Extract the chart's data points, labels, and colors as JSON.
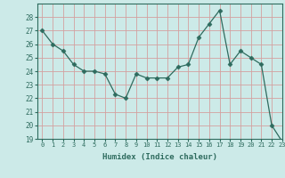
{
  "x": [
    0,
    1,
    2,
    3,
    4,
    5,
    6,
    7,
    8,
    9,
    10,
    11,
    12,
    13,
    14,
    15,
    16,
    17,
    18,
    19,
    20,
    21,
    22,
    23
  ],
  "y": [
    27.0,
    26.0,
    25.5,
    24.5,
    24.0,
    24.0,
    23.8,
    22.3,
    22.0,
    23.8,
    23.5,
    23.5,
    23.5,
    24.3,
    24.5,
    26.5,
    27.5,
    28.5,
    24.5,
    25.5,
    25.0,
    24.5,
    20.0,
    18.8
  ],
  "line_color": "#2e6b5e",
  "marker": "D",
  "marker_size": 2.5,
  "xlabel": "Humidex (Indice chaleur)",
  "ylim": [
    19,
    29
  ],
  "xlim": [
    -0.5,
    23
  ],
  "yticks": [
    19,
    20,
    21,
    22,
    23,
    24,
    25,
    26,
    27,
    28
  ],
  "xticks": [
    0,
    1,
    2,
    3,
    4,
    5,
    6,
    7,
    8,
    9,
    10,
    11,
    12,
    13,
    14,
    15,
    16,
    17,
    18,
    19,
    20,
    21,
    22,
    23
  ],
  "bg_color": "#cceae8",
  "grid_major_color": "#d4a0a0",
  "grid_minor_color": "#e8cccc",
  "plot_bg": "#cceae8",
  "outer_bg": "#cceae8",
  "tick_color": "#2e6b5e",
  "label_color": "#2e6b5e"
}
